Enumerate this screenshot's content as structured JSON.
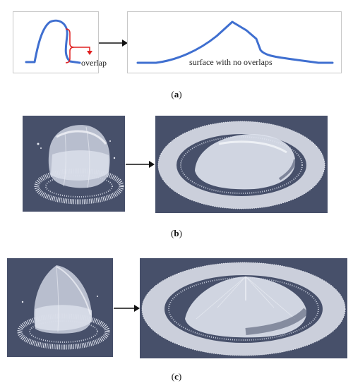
{
  "figure": {
    "row_a": {
      "label_overlap": "overlap",
      "label_surface": "surface with no overlaps",
      "caption_open": "(",
      "caption_letter": "a",
      "caption_close": ")"
    },
    "row_b": {
      "caption_open": "(",
      "caption_letter": "b",
      "caption_close": ")"
    },
    "row_c": {
      "caption_open": "(",
      "caption_letter": "c",
      "caption_close": ")"
    }
  },
  "colors": {
    "curve": "#3f6fd0",
    "bracket": "#e02020",
    "arrow": "#111111",
    "point_cloud_bg": "#47506a",
    "point_cloud_fg": "#e6e9f2"
  }
}
